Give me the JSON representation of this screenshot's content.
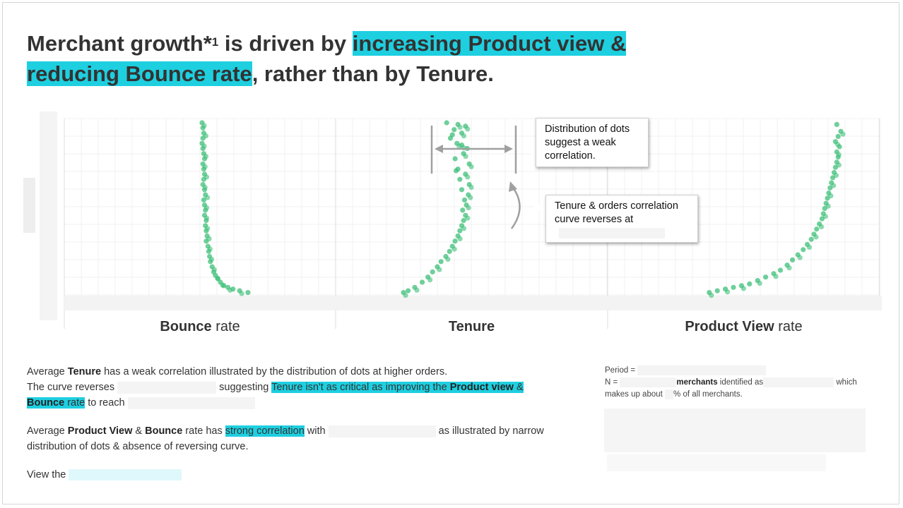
{
  "title": {
    "part1": "Merchant growth*",
    "sup": "1",
    "part2": " is driven by ",
    "highlight1": "increasing Product view &",
    "highlight2": "reducing Bounce rate",
    "part3": ", rather than by Tenure."
  },
  "colors": {
    "highlight": "#1ecfe0",
    "dots": "#3dbf78",
    "arrows": "#a0a0a0"
  },
  "chart_data": [
    {
      "type": "scatter",
      "xlabel_bold": "Bounce",
      "xlabel_rest": " rate",
      "x": [
        0.0,
        0.01,
        0.02,
        0.01,
        0.0,
        0.01,
        0.02,
        0.03,
        0.01,
        0.02,
        0.03,
        0.02,
        0.01,
        0.03,
        0.04,
        0.02,
        0.03,
        0.04,
        0.03,
        0.05,
        0.04,
        0.05,
        0.06,
        0.05,
        0.07,
        0.08,
        0.09,
        0.1,
        0.12,
        0.14,
        0.16,
        0.19,
        0.22,
        0.26,
        0.31,
        0.37,
        0.45,
        0.55
      ],
      "y": [
        1.0,
        0.97,
        0.94,
        0.91,
        0.88,
        0.85,
        0.82,
        0.79,
        0.76,
        0.73,
        0.7,
        0.67,
        0.64,
        0.61,
        0.58,
        0.55,
        0.52,
        0.49,
        0.46,
        0.43,
        0.4,
        0.37,
        0.34,
        0.31,
        0.28,
        0.25,
        0.22,
        0.19,
        0.16,
        0.13,
        0.11,
        0.09,
        0.07,
        0.05,
        0.04,
        0.03,
        0.02,
        0.01
      ]
    },
    {
      "type": "scatter",
      "xlabel_bold": "Tenure",
      "xlabel_rest": "",
      "x": [
        0.0,
        0.05,
        0.12,
        0.2,
        0.26,
        0.31,
        0.36,
        0.4,
        0.45,
        0.49,
        0.52,
        0.55,
        0.58,
        0.6,
        0.62,
        0.64,
        0.66,
        0.63,
        0.67,
        0.65,
        0.69,
        0.62,
        0.7,
        0.6,
        0.66,
        0.58,
        0.7,
        0.55,
        0.64,
        0.68,
        0.57,
        0.5,
        0.62,
        0.54,
        0.66,
        0.46,
        0.58,
        0.52,
        0.62,
        0.56
      ],
      "y": [
        0.01,
        0.02,
        0.04,
        0.07,
        0.1,
        0.13,
        0.16,
        0.19,
        0.22,
        0.25,
        0.28,
        0.31,
        0.34,
        0.37,
        0.4,
        0.43,
        0.46,
        0.49,
        0.52,
        0.55,
        0.58,
        0.61,
        0.64,
        0.67,
        0.7,
        0.73,
        0.76,
        0.79,
        0.82,
        0.85,
        0.88,
        0.91,
        0.94,
        0.96,
        0.98,
        1.0,
        0.99,
        0.93,
        0.87,
        0.72
      ]
    },
    {
      "type": "scatter",
      "xlabel_bold": "Product View",
      "xlabel_rest": " rate",
      "x": [
        0.02,
        0.08,
        0.14,
        0.2,
        0.26,
        0.32,
        0.38,
        0.44,
        0.5,
        0.55,
        0.6,
        0.64,
        0.68,
        0.72,
        0.75,
        0.78,
        0.8,
        0.82,
        0.84,
        0.86,
        0.87,
        0.88,
        0.89,
        0.9,
        0.91,
        0.92,
        0.93,
        0.94,
        0.95,
        0.96,
        0.97,
        0.98,
        0.97,
        0.99,
        0.96,
        0.98,
        1.0,
        0.97
      ],
      "y": [
        0.01,
        0.02,
        0.03,
        0.04,
        0.05,
        0.06,
        0.08,
        0.1,
        0.12,
        0.14,
        0.17,
        0.2,
        0.23,
        0.26,
        0.29,
        0.32,
        0.35,
        0.38,
        0.41,
        0.44,
        0.47,
        0.5,
        0.53,
        0.56,
        0.59,
        0.62,
        0.65,
        0.68,
        0.71,
        0.74,
        0.77,
        0.8,
        0.83,
        0.86,
        0.89,
        0.92,
        0.95,
        0.99
      ]
    }
  ],
  "callouts": {
    "weak": "Distribution of dots suggest a weak correlation.",
    "reverse": "Tenure & orders correlation curve reverses at"
  },
  "paragraph1": {
    "l1_a": "Average ",
    "l1_b": "Tenure",
    "l1_c": " has a weak correlation illustrated by the distribution of dots at higher orders.",
    "l2_a": "The curve reverses ",
    "l2_b": " suggesting ",
    "l2_hl_a": "Tenure isn't as critical as improving the ",
    "l2_hl_b": "Product view",
    "l2_hl_c": " &",
    "l3_hl_a": "Bounce",
    "l3_hl_b": " rate",
    "l3_c": " to reach"
  },
  "paragraph2": {
    "a": "Average ",
    "b": "Product View",
    "c": " & ",
    "d": "Bounce",
    "e": " rate has ",
    "hl": "strong correlation",
    "f": " with ",
    "g": " as illustrated by narrow",
    "l2": "distribution of dots & absence of reversing curve."
  },
  "paragraph3": {
    "a": "View the"
  },
  "note": {
    "period": "Period = ",
    "n": "N = ",
    "merchants": "merchants",
    "identified": " identified as",
    "which": " which",
    "makes_up": "makes up about ",
    "percent": "% of all merchants."
  }
}
